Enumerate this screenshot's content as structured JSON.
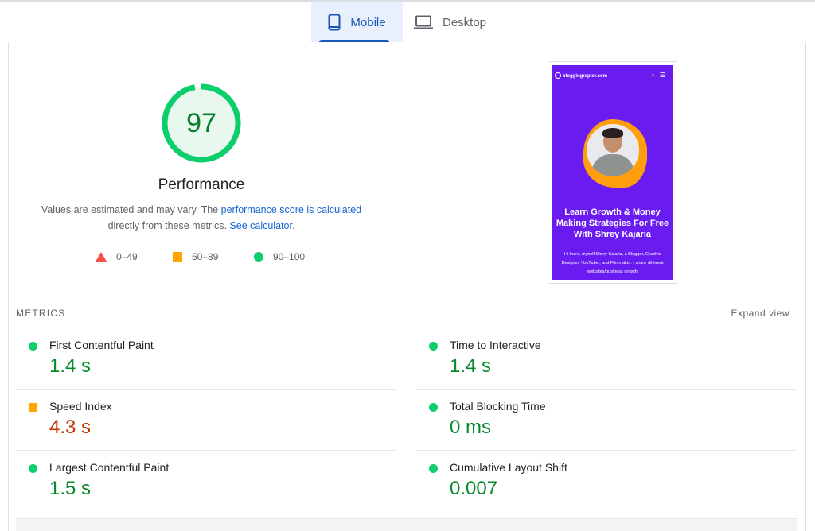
{
  "tabs": {
    "mobile_label": "Mobile",
    "desktop_label": "Desktop",
    "active": "mobile"
  },
  "performance": {
    "score": "97",
    "score_value": 97,
    "title": "Performance",
    "desc_part1": "Values are estimated and may vary. The ",
    "desc_link1": "performance score is calculated",
    "desc_part2": "directly from these metrics. ",
    "desc_link2": "See calculator",
    "desc_part3": "."
  },
  "legend": {
    "fail": "0–49",
    "average": "50–89",
    "pass": "90–100"
  },
  "screenshot": {
    "site_name": "bloggingrapter.com",
    "headline": "Learn Growth & Money Making Strategies For Free With Shrey Kajaria",
    "body_text": "Hi there, myself Shrey Kajaria, a Blogger, Graphic Designer, YouTuber, and Filmmaker. I share different websites/business growth"
  },
  "metrics": {
    "heading": "METRICS",
    "expand_label": "Expand view",
    "items": [
      {
        "name": "First Contentful Paint",
        "value": "1.4 s",
        "status": "pass"
      },
      {
        "name": "Time to Interactive",
        "value": "1.4 s",
        "status": "pass"
      },
      {
        "name": "Speed Index",
        "value": "4.3 s",
        "status": "average"
      },
      {
        "name": "Total Blocking Time",
        "value": "0 ms",
        "status": "pass"
      },
      {
        "name": "Largest Contentful Paint",
        "value": "1.5 s",
        "status": "pass"
      },
      {
        "name": "Cumulative Layout Shift",
        "value": "0.007",
        "status": "pass"
      }
    ]
  },
  "colors": {
    "pass": "#0cce6b",
    "average": "#ffa400",
    "fail": "#ff4e42",
    "accent": "#1a56b7"
  }
}
